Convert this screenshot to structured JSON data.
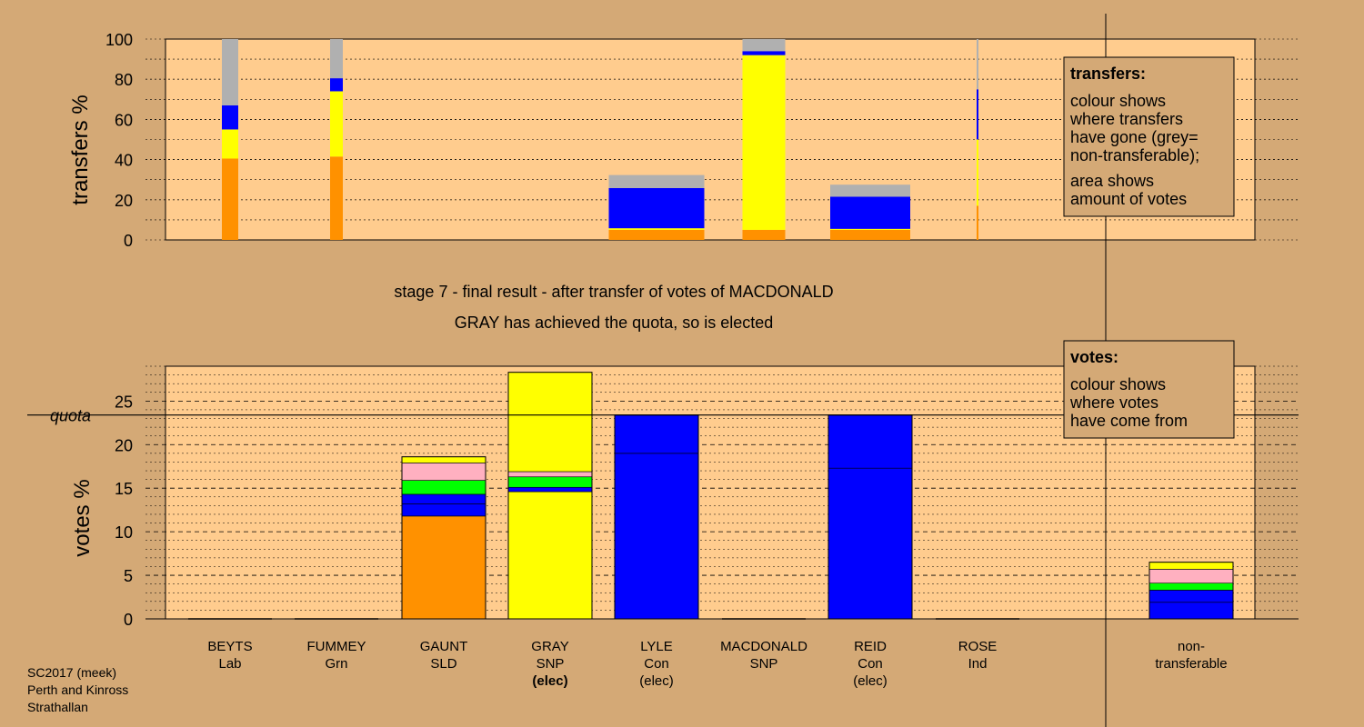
{
  "stage_title": "stage 7 - final result - after transfer of votes of MACDONALD",
  "stage_subtitle": "GRAY has achieved the quota, so is elected",
  "footer": [
    "SC2017 (meek)",
    "Perth and Kinross",
    "Strathallan"
  ],
  "colors": {
    "background": "#d4a976",
    "plot": "#ffcc8e",
    "Lab": "#ff9100",
    "SNP": "#ffff00",
    "Con": "#0000ff",
    "SLD": "#ff9100",
    "Grn": "#00ff00",
    "Ind": "#ffb0c0",
    "nt": "#b0b0b0"
  },
  "transfers_legend": {
    "title": "transfers:",
    "lines": [
      "colour shows",
      "where transfers",
      "have gone (grey=",
      "non-transferable);"
    ],
    "lines2": [
      "area shows",
      "amount of votes"
    ]
  },
  "votes_legend": {
    "title": "votes:",
    "lines": [
      "colour shows",
      "where votes",
      "have come from"
    ]
  },
  "candidates": [
    {
      "name": "BEYTS",
      "party": "Lab",
      "status": ""
    },
    {
      "name": "FUMMEY",
      "party": "Grn",
      "status": ""
    },
    {
      "name": "GAUNT",
      "party": "SLD",
      "status": ""
    },
    {
      "name": "GRAY",
      "party": "SNP",
      "status": "(elec)"
    },
    {
      "name": "LYLE",
      "party": "Con",
      "status": "(elec)"
    },
    {
      "name": "MACDONALD",
      "party": "SNP",
      "status": ""
    },
    {
      "name": "REID",
      "party": "Con",
      "status": "(elec)"
    },
    {
      "name": "ROSE",
      "party": "Ind",
      "status": ""
    },
    {
      "name": "non-",
      "party": "transferable",
      "status": ""
    }
  ],
  "chart_data": [
    {
      "type": "bar",
      "stacked": true,
      "ylabel": "transfers %",
      "ylim": [
        0,
        100
      ],
      "yticks": [
        0,
        20,
        40,
        60,
        80,
        100
      ],
      "bars": [
        {
          "candidate": "BEYTS",
          "segments": [
            {
              "party": "Lab",
              "value": 40.5
            },
            {
              "party": "SNP",
              "value": 14.5
            },
            {
              "party": "Con",
              "value": 12
            },
            {
              "party": "nt",
              "value": 33
            }
          ]
        },
        {
          "candidate": "FUMMEY",
          "segments": [
            {
              "party": "Lab",
              "value": 41.5
            },
            {
              "party": "SNP",
              "value": 32.5
            },
            {
              "party": "Con",
              "value": 6.5
            },
            {
              "party": "nt",
              "value": 19.5
            }
          ]
        },
        {
          "candidate": "LYLE",
          "segments": [
            {
              "party": "Lab",
              "value": 5
            },
            {
              "party": "SNP",
              "value": 0.8
            },
            {
              "party": "Con",
              "value": 20
            },
            {
              "party": "nt",
              "value": 6.5
            }
          ]
        },
        {
          "candidate": "GRAY",
          "segments": [
            {
              "party": "Lab",
              "value": 5
            },
            {
              "party": "SNP",
              "value": 87
            },
            {
              "party": "Con",
              "value": 2
            },
            {
              "party": "nt",
              "value": 6
            }
          ]
        },
        {
          "candidate": "REID",
          "segments": [
            {
              "party": "Lab",
              "value": 5
            },
            {
              "party": "SNP",
              "value": 0.5
            },
            {
              "party": "Con",
              "value": 16
            },
            {
              "party": "nt",
              "value": 6
            }
          ]
        },
        {
          "candidate": "MACDONALD",
          "segments": [
            {
              "party": "Lab",
              "value": 17
            },
            {
              "party": "SNP",
              "value": 33
            },
            {
              "party": "Con",
              "value": 25
            },
            {
              "party": "nt",
              "value": 25
            }
          ]
        }
      ]
    },
    {
      "type": "bar",
      "stacked": true,
      "ylabel": "votes %",
      "ylim": [
        0,
        29
      ],
      "yticks": [
        0,
        5,
        10,
        15,
        20,
        25
      ],
      "quota": 23.4,
      "quota_label": "quota",
      "bars": [
        {
          "candidate": "GAUNT",
          "segments": [
            {
              "party": "SLD",
              "value": 11.8
            },
            {
              "party": "Con",
              "value": 1.4
            },
            {
              "party": "Con",
              "value": 1.1
            },
            {
              "party": "Grn",
              "value": 1.6
            },
            {
              "party": "Ind",
              "value": 2.0
            },
            {
              "party": "SNP",
              "value": 0.7
            }
          ]
        },
        {
          "candidate": "GRAY",
          "segments": [
            {
              "party": "SNP",
              "value": 14.6
            },
            {
              "party": "Con",
              "value": 0.5
            },
            {
              "party": "Grn",
              "value": 1.2
            },
            {
              "party": "Ind",
              "value": 0.6
            },
            {
              "party": "SNP",
              "value": 11.4
            }
          ]
        },
        {
          "candidate": "LYLE",
          "segments": [
            {
              "party": "Con",
              "value": 19.0
            },
            {
              "party": "Con",
              "value": 4.4
            }
          ]
        },
        {
          "candidate": "REID",
          "segments": [
            {
              "party": "Con",
              "value": 17.3
            },
            {
              "party": "Con",
              "value": 6.1
            }
          ]
        },
        {
          "candidate": "non-transferable",
          "segments": [
            {
              "party": "Con",
              "value": 1.9
            },
            {
              "party": "Con",
              "value": 1.4
            },
            {
              "party": "Grn",
              "value": 0.8
            },
            {
              "party": "Ind",
              "value": 1.6
            },
            {
              "party": "SNP",
              "value": 0.8
            }
          ]
        }
      ]
    }
  ]
}
